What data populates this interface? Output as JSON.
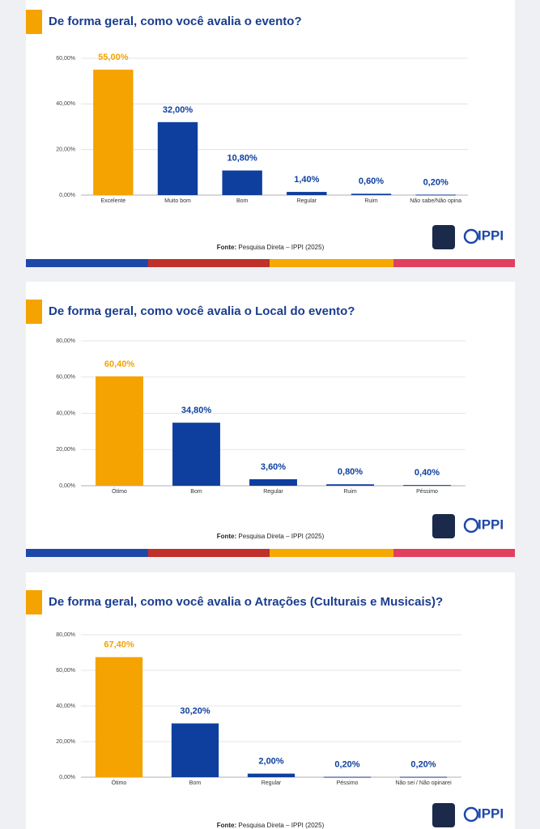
{
  "chart_data": [
    {
      "type": "bar",
      "title": "De forma geral, como você avalia o evento?",
      "categories": [
        "Excelente",
        "Muito bom",
        "Bom",
        "Regular",
        "Ruim",
        "Não sabe/Não opina"
      ],
      "values": [
        55.0,
        32.0,
        10.8,
        1.4,
        0.6,
        0.2
      ],
      "value_labels": [
        "55,00%",
        "32,00%",
        "10,80%",
        "1,40%",
        "0,60%",
        "0,20%"
      ],
      "colors": [
        "#f5a300",
        "#0e3f9e",
        "#0e3f9e",
        "#0e3f9e",
        "#0e3f9e",
        "#0e3f9e"
      ],
      "ylim": [
        0,
        60
      ],
      "yticks": [
        {
          "value": 0,
          "label": "0,00%"
        },
        {
          "value": 20,
          "label": "20,00%"
        },
        {
          "value": 40,
          "label": "40,00%"
        },
        {
          "value": 60,
          "label": "60,00%"
        }
      ],
      "grid": true,
      "source_label": "Fonte:",
      "source": "Pesquisa Direta – IPPI (2025)",
      "logo": "IPPI"
    },
    {
      "type": "bar",
      "title": "De forma geral, como você avalia o Local do evento?",
      "categories": [
        "Ótimo",
        "Bom",
        "Regular",
        "Ruim",
        "Péssimo"
      ],
      "values": [
        60.4,
        34.8,
        3.6,
        0.8,
        0.4
      ],
      "value_labels": [
        "60,40%",
        "34,80%",
        "3,60%",
        "0,80%",
        "0,40%"
      ],
      "colors": [
        "#f5a300",
        "#0e3f9e",
        "#0e3f9e",
        "#0e3f9e",
        "#0e3f9e"
      ],
      "ylim": [
        0,
        80
      ],
      "yticks": [
        {
          "value": 0,
          "label": "0,00%"
        },
        {
          "value": 20,
          "label": "20,00%"
        },
        {
          "value": 40,
          "label": "40,00%"
        },
        {
          "value": 60,
          "label": "60,00%"
        },
        {
          "value": 80,
          "label": "80,00%"
        }
      ],
      "grid": true,
      "source_label": "Fonte:",
      "source": "Pesquisa Direta – IPPI (2025)",
      "logo": "IPPI"
    },
    {
      "type": "bar",
      "title": "De forma geral, como você avalia o Atrações (Culturais e Musicais)?",
      "categories": [
        "Ótimo",
        "Bom",
        "Regular",
        "Péssimo",
        "Não sei / Não opinarei"
      ],
      "values": [
        67.4,
        30.2,
        2.0,
        0.2,
        0.2
      ],
      "value_labels": [
        "67,40%",
        "30,20%",
        "2,00%",
        "0,20%",
        "0,20%"
      ],
      "colors": [
        "#f5a300",
        "#0e3f9e",
        "#0e3f9e",
        "#0e3f9e",
        "#0e3f9e"
      ],
      "ylim": [
        0,
        80
      ],
      "yticks": [
        {
          "value": 0,
          "label": "0,00%"
        },
        {
          "value": 20,
          "label": "20,00%"
        },
        {
          "value": 40,
          "label": "40,00%"
        },
        {
          "value": 60,
          "label": "60,00%"
        },
        {
          "value": 80,
          "label": "80,00%"
        }
      ],
      "grid": true,
      "source_label": "Fonte:",
      "source": "Pesquisa Direta – IPPI (2025)",
      "logo": "IPPI"
    }
  ]
}
